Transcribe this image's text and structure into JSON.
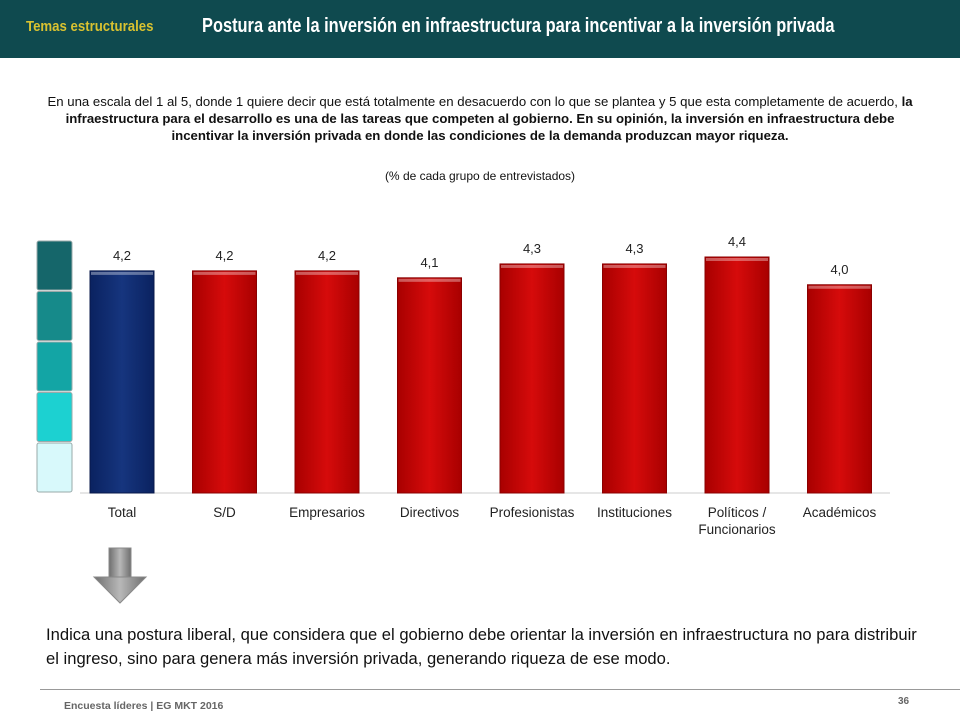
{
  "header": {
    "section_tag": "Temas estructurales",
    "title": "Postura ante la inversión en infraestructura para incentivar a la inversión privada",
    "background_color": "#0f4a4f",
    "tag_color": "#d9c230"
  },
  "question": {
    "intro": "En una escala del 1 al 5, donde 1 quiere decir que está totalmente en desacuerdo con lo que se plantea y 5 que esta completamente de acuerdo,",
    "statement": "la infraestructura para el desarrollo es una de las tareas que competen al gobierno. En su opinión, la inversión en infraestructura debe incentivar la inversión privada en donde las condiciones de la demanda produzcan mayor riqueza.",
    "note": "(% de cada grupo de entrevistados)"
  },
  "scale_icon": {
    "colors": [
      "#15666a",
      "#168a8a",
      "#13a5a5",
      "#1cd1d1",
      "#d8f9fb"
    ]
  },
  "chart_data": {
    "type": "bar",
    "categories": [
      "Total",
      "S/D",
      "Empresarios",
      "Directivos",
      "Profesionistas",
      "Instituciones",
      "Políticos / Funcionarios",
      "Académicos"
    ],
    "category_lines": [
      [
        "Total"
      ],
      [
        "S/D"
      ],
      [
        "Empresarios"
      ],
      [
        "Directivos"
      ],
      [
        "Profesionistas"
      ],
      [
        "Instituciones"
      ],
      [
        "Políticos /",
        "Funcionarios"
      ],
      [
        "Académicos"
      ]
    ],
    "values": [
      4.2,
      4.2,
      4.2,
      4.1,
      4.3,
      4.3,
      4.4,
      4.0
    ],
    "data_labels": [
      "4,2",
      "4,2",
      "4,2",
      "4,1",
      "4,3",
      "4,3",
      "4,4",
      "4,0"
    ],
    "ylim": [
      1,
      5
    ],
    "grid": false,
    "colors": [
      "#0d2a6e",
      "#cc0808",
      "#cc0808",
      "#cc0808",
      "#cc0808",
      "#cc0808",
      "#cc0808",
      "#cc0808"
    ]
  },
  "arrow_icon": "down-arrow-icon",
  "conclusion": "Indica una postura liberal, que considera que el gobierno debe orientar la inversión en infraestructura no para distribuir el ingreso, sino para genera más inversión privada, generando riqueza de ese modo.",
  "footer": {
    "source": "Encuesta líderes | EG MKT 2016",
    "page_number": "36"
  }
}
